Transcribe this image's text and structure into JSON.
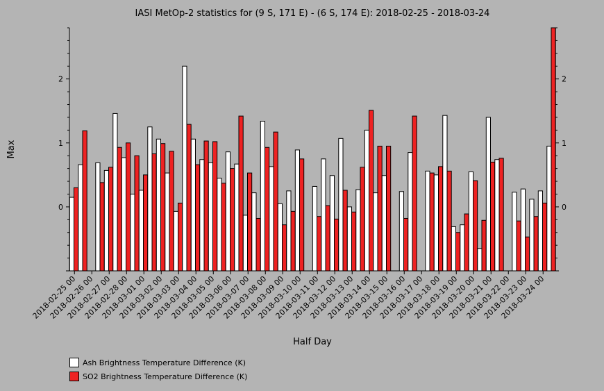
{
  "chart_data": {
    "type": "bar",
    "title": "IASI MetOp-2 statistics for (9 S, 171 E) - (6 S, 174 E): 2018-02-25 - 2018-03-24",
    "xlabel": "Half Day",
    "ylabel": "Max",
    "ylim": [
      -1,
      2.8
    ],
    "yticks": [
      0,
      1,
      2
    ],
    "legend_position": "bottom-left",
    "grid": false,
    "categories": [
      "2018-02-25 00",
      "2018-02-25 12",
      "2018-02-26 00",
      "2018-02-26 12",
      "2018-02-27 00",
      "2018-02-27 12",
      "2018-02-28 00",
      "2018-02-28 12",
      "2018-03-01 00",
      "2018-03-01 12",
      "2018-03-02 00",
      "2018-03-02 12",
      "2018-03-03 00",
      "2018-03-03 12",
      "2018-03-04 00",
      "2018-03-04 12",
      "2018-03-05 00",
      "2018-03-05 12",
      "2018-03-06 00",
      "2018-03-06 12",
      "2018-03-07 00",
      "2018-03-07 12",
      "2018-03-08 00",
      "2018-03-08 12",
      "2018-03-09 00",
      "2018-03-09 12",
      "2018-03-10 00",
      "2018-03-10 12",
      "2018-03-11 00",
      "2018-03-11 12",
      "2018-03-12 00",
      "2018-03-12 12",
      "2018-03-13 00",
      "2018-03-13 12",
      "2018-03-14 00",
      "2018-03-14 12",
      "2018-03-15 00",
      "2018-03-15 12",
      "2018-03-16 00",
      "2018-03-16 12",
      "2018-03-17 00",
      "2018-03-17 12",
      "2018-03-18 00",
      "2018-03-18 12",
      "2018-03-19 00",
      "2018-03-19 12",
      "2018-03-20 00",
      "2018-03-20 12",
      "2018-03-21 00",
      "2018-03-21 12",
      "2018-03-22 00",
      "2018-03-22 12",
      "2018-03-23 00",
      "2018-03-23 12",
      "2018-03-24 00",
      "2018-03-24 12"
    ],
    "tick_labels": [
      "2018-02-25 00",
      "2018-02-26 00",
      "2018-02-27 00",
      "2018-02-28 00",
      "2018-03-01 00",
      "2018-03-02 00",
      "2018-03-03 00",
      "2018-03-04 00",
      "2018-03-05 00",
      "2018-03-06 00",
      "2018-03-07 00",
      "2018-03-08 00",
      "2018-03-09 00",
      "2018-03-10 00",
      "2018-03-11 00",
      "2018-03-12 00",
      "2018-03-13 00",
      "2018-03-14 00",
      "2018-03-15 00",
      "2018-03-16 00",
      "2018-03-17 00",
      "2018-03-18 00",
      "2018-03-19 00",
      "2018-03-20 00",
      "2018-03-21 00",
      "2018-03-22 00",
      "2018-03-23 00",
      "2018-03-24 00"
    ],
    "series": [
      {
        "name": "Ash Brightness Temperature Difference (K)",
        "color": "#ffffff",
        "values": [
          0.15,
          0.66,
          null,
          0.69,
          0.57,
          1.46,
          0.77,
          0.2,
          0.26,
          1.25,
          1.06,
          0.53,
          -0.07,
          2.2,
          1.06,
          0.74,
          0.69,
          0.45,
          0.86,
          0.67,
          -0.13,
          0.22,
          1.34,
          0.63,
          0.05,
          0.25,
          0.89,
          null,
          0.32,
          0.75,
          0.49,
          1.07,
          0.0,
          0.27,
          1.2,
          0.22,
          0.49,
          null,
          0.24,
          0.85,
          null,
          0.56,
          0.5,
          1.43,
          -0.31,
          -0.28,
          0.55,
          -0.65,
          1.4,
          0.74,
          null,
          0.23,
          0.28,
          0.12,
          0.25,
          0.95
        ]
      },
      {
        "name": "SO2 Brightness Temperature Difference (K)",
        "color": "#ee2222",
        "values": [
          0.3,
          1.19,
          null,
          0.38,
          0.62,
          0.93,
          1.0,
          0.8,
          0.5,
          0.83,
          0.99,
          0.87,
          0.06,
          1.29,
          0.66,
          1.03,
          1.02,
          0.37,
          0.6,
          1.42,
          0.53,
          -0.18,
          0.93,
          1.17,
          -0.28,
          -0.07,
          0.75,
          null,
          -0.15,
          0.02,
          -0.19,
          0.26,
          -0.08,
          0.62,
          1.51,
          0.95,
          0.95,
          null,
          -0.18,
          1.42,
          null,
          0.53,
          0.63,
          0.56,
          -0.4,
          -0.11,
          0.41,
          -0.21,
          0.7,
          0.76,
          null,
          -0.22,
          -0.47,
          -0.15,
          0.06,
          2.8
        ]
      }
    ]
  }
}
